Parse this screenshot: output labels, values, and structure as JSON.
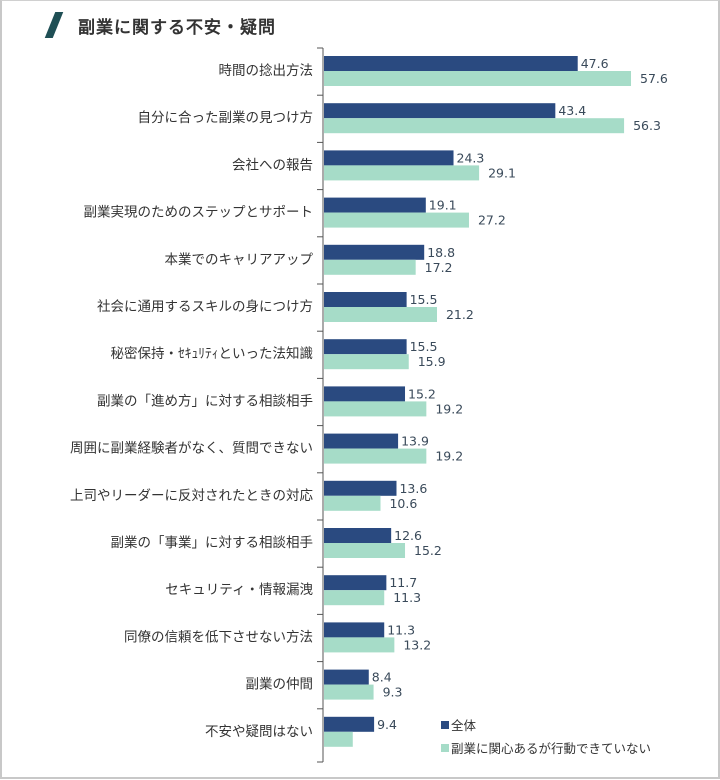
{
  "title": "副業に関する不安・疑問",
  "colors": {
    "series1": "#2a4a80",
    "series2": "#a6dcc8",
    "title_accent": "#1f4f55"
  },
  "chart_data": {
    "type": "bar",
    "orientation": "horizontal",
    "title": "副業に関する不安・疑問",
    "xlabel": "",
    "ylabel": "",
    "xlim": [
      0,
      60
    ],
    "grid": false,
    "legend_position": "bottom-right",
    "categories": [
      "時間の捻出方法",
      "自分に合った副業の見つけ方",
      "会社への報告",
      "副業実現のためのステップとサポート",
      "本業でのキャリアアップ",
      "社会に通用するスキルの身につけ方",
      "秘密保持・ｾｷｭﾘﾃｨといった法知識",
      "副業の「進め方」に対する相談相手",
      "周囲に副業経験者がなく、質問できない",
      "上司やリーダーに反対されたときの対応",
      "副業の「事業」に対する相談相手",
      "セキュリティ・情報漏洩",
      "同僚の信頼を低下させない方法",
      "副業の仲間",
      "不安や疑問はない"
    ],
    "series": [
      {
        "name": "全体",
        "values": [
          47.6,
          43.4,
          24.3,
          19.1,
          18.8,
          15.5,
          15.5,
          15.2,
          13.9,
          13.6,
          12.6,
          11.7,
          11.3,
          8.4,
          9.4
        ],
        "labels": [
          "47.6",
          "43.4",
          "24.3",
          "19.1",
          "18.8",
          "15.5",
          "15.5",
          "15.2",
          "13.9",
          "13.6",
          "12.6",
          "11.7",
          "11.3",
          "8.4",
          "9.4"
        ]
      },
      {
        "name": "副業に関心あるが行動できていない",
        "values": [
          57.6,
          56.3,
          29.1,
          27.2,
          17.2,
          21.2,
          15.9,
          19.2,
          19.2,
          10.6,
          15.2,
          11.3,
          13.2,
          9.3,
          5.4
        ],
        "labels": [
          "57.6",
          "56.3",
          "29.1",
          "27.2",
          "17.2",
          "21.2",
          "15.9",
          "19.2",
          "19.2",
          "10.6",
          "15.2",
          "11.3",
          "13.2",
          "9.3",
          ""
        ]
      }
    ]
  }
}
